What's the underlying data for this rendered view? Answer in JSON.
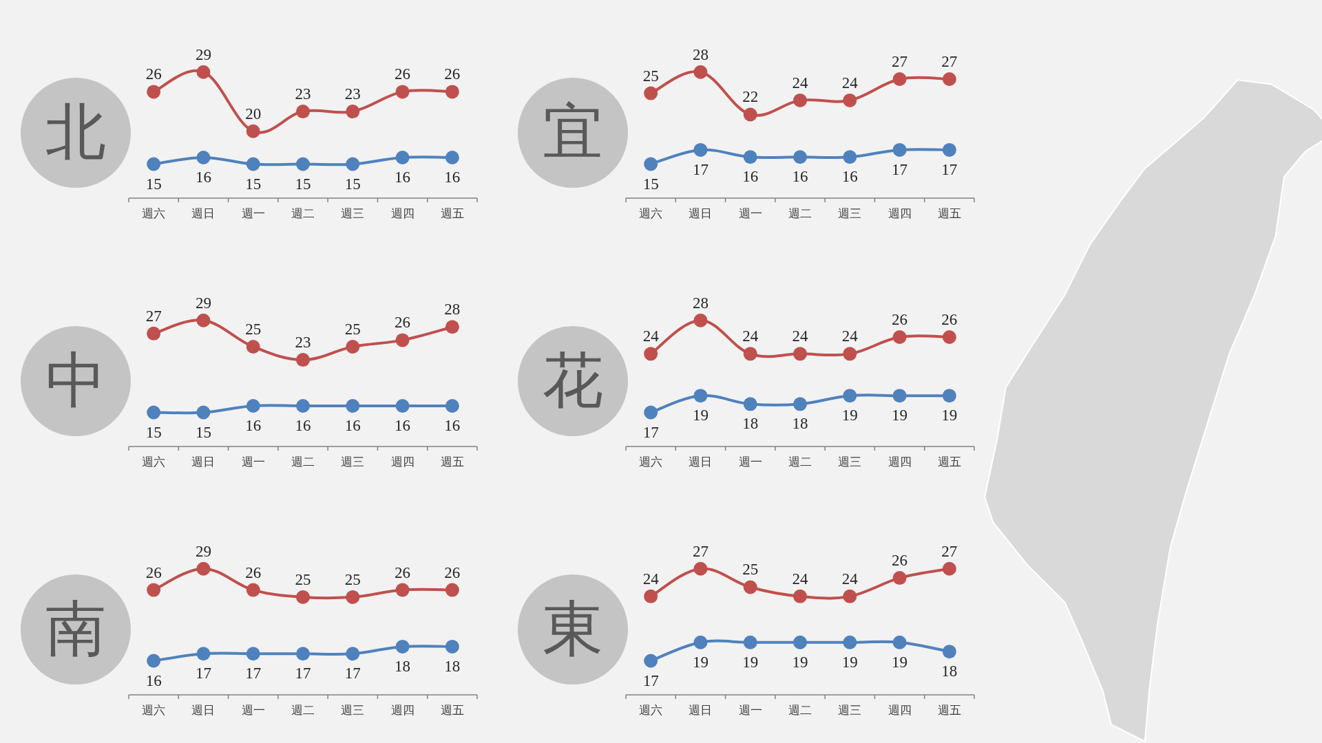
{
  "chart_data": [
    {
      "type": "line",
      "title": "北",
      "categories": [
        "週六",
        "週日",
        "週一",
        "週二",
        "週三",
        "週四",
        "週五"
      ],
      "data_labels": true,
      "marker": "circle",
      "series": [
        {
          "color": "#c0504d",
          "values": [
            26,
            29,
            20,
            23,
            23,
            26,
            26
          ]
        },
        {
          "color": "#4f81bd",
          "values": [
            15,
            16,
            15,
            15,
            15,
            16,
            16
          ]
        }
      ]
    },
    {
      "type": "line",
      "title": "宜",
      "categories": [
        "週六",
        "週日",
        "週一",
        "週二",
        "週三",
        "週四",
        "週五"
      ],
      "data_labels": true,
      "marker": "circle",
      "series": [
        {
          "color": "#c0504d",
          "values": [
            25,
            28,
            22,
            24,
            24,
            27,
            27
          ]
        },
        {
          "color": "#4f81bd",
          "values": [
            15,
            17,
            16,
            16,
            16,
            17,
            17
          ]
        }
      ]
    },
    {
      "type": "line",
      "title": "中",
      "categories": [
        "週六",
        "週日",
        "週一",
        "週二",
        "週三",
        "週四",
        "週五"
      ],
      "data_labels": true,
      "marker": "circle",
      "series": [
        {
          "color": "#c0504d",
          "values": [
            27,
            29,
            25,
            23,
            25,
            26,
            28
          ]
        },
        {
          "color": "#4f81bd",
          "values": [
            15,
            15,
            16,
            16,
            16,
            16,
            16
          ]
        }
      ]
    },
    {
      "type": "line",
      "title": "花",
      "categories": [
        "週六",
        "週日",
        "週一",
        "週二",
        "週三",
        "週四",
        "週五"
      ],
      "data_labels": true,
      "marker": "circle",
      "series": [
        {
          "color": "#c0504d",
          "values": [
            24,
            28,
            24,
            24,
            24,
            26,
            26
          ]
        },
        {
          "color": "#4f81bd",
          "values": [
            17,
            19,
            18,
            18,
            19,
            19,
            19
          ]
        }
      ]
    },
    {
      "type": "line",
      "title": "南",
      "categories": [
        "週六",
        "週日",
        "週一",
        "週二",
        "週三",
        "週四",
        "週五"
      ],
      "data_labels": true,
      "marker": "circle",
      "series": [
        {
          "color": "#c0504d",
          "values": [
            26,
            29,
            26,
            25,
            25,
            26,
            26
          ]
        },
        {
          "color": "#4f81bd",
          "values": [
            16,
            17,
            17,
            17,
            17,
            18,
            18
          ]
        }
      ]
    },
    {
      "type": "line",
      "title": "東",
      "categories": [
        "週六",
        "週日",
        "週一",
        "週二",
        "週三",
        "週四",
        "週五"
      ],
      "data_labels": true,
      "marker": "circle",
      "series": [
        {
          "color": "#c0504d",
          "values": [
            24,
            27,
            25,
            24,
            24,
            26,
            27
          ]
        },
        {
          "color": "#4f81bd",
          "values": [
            17,
            19,
            19,
            19,
            19,
            19,
            18
          ]
        }
      ]
    }
  ]
}
